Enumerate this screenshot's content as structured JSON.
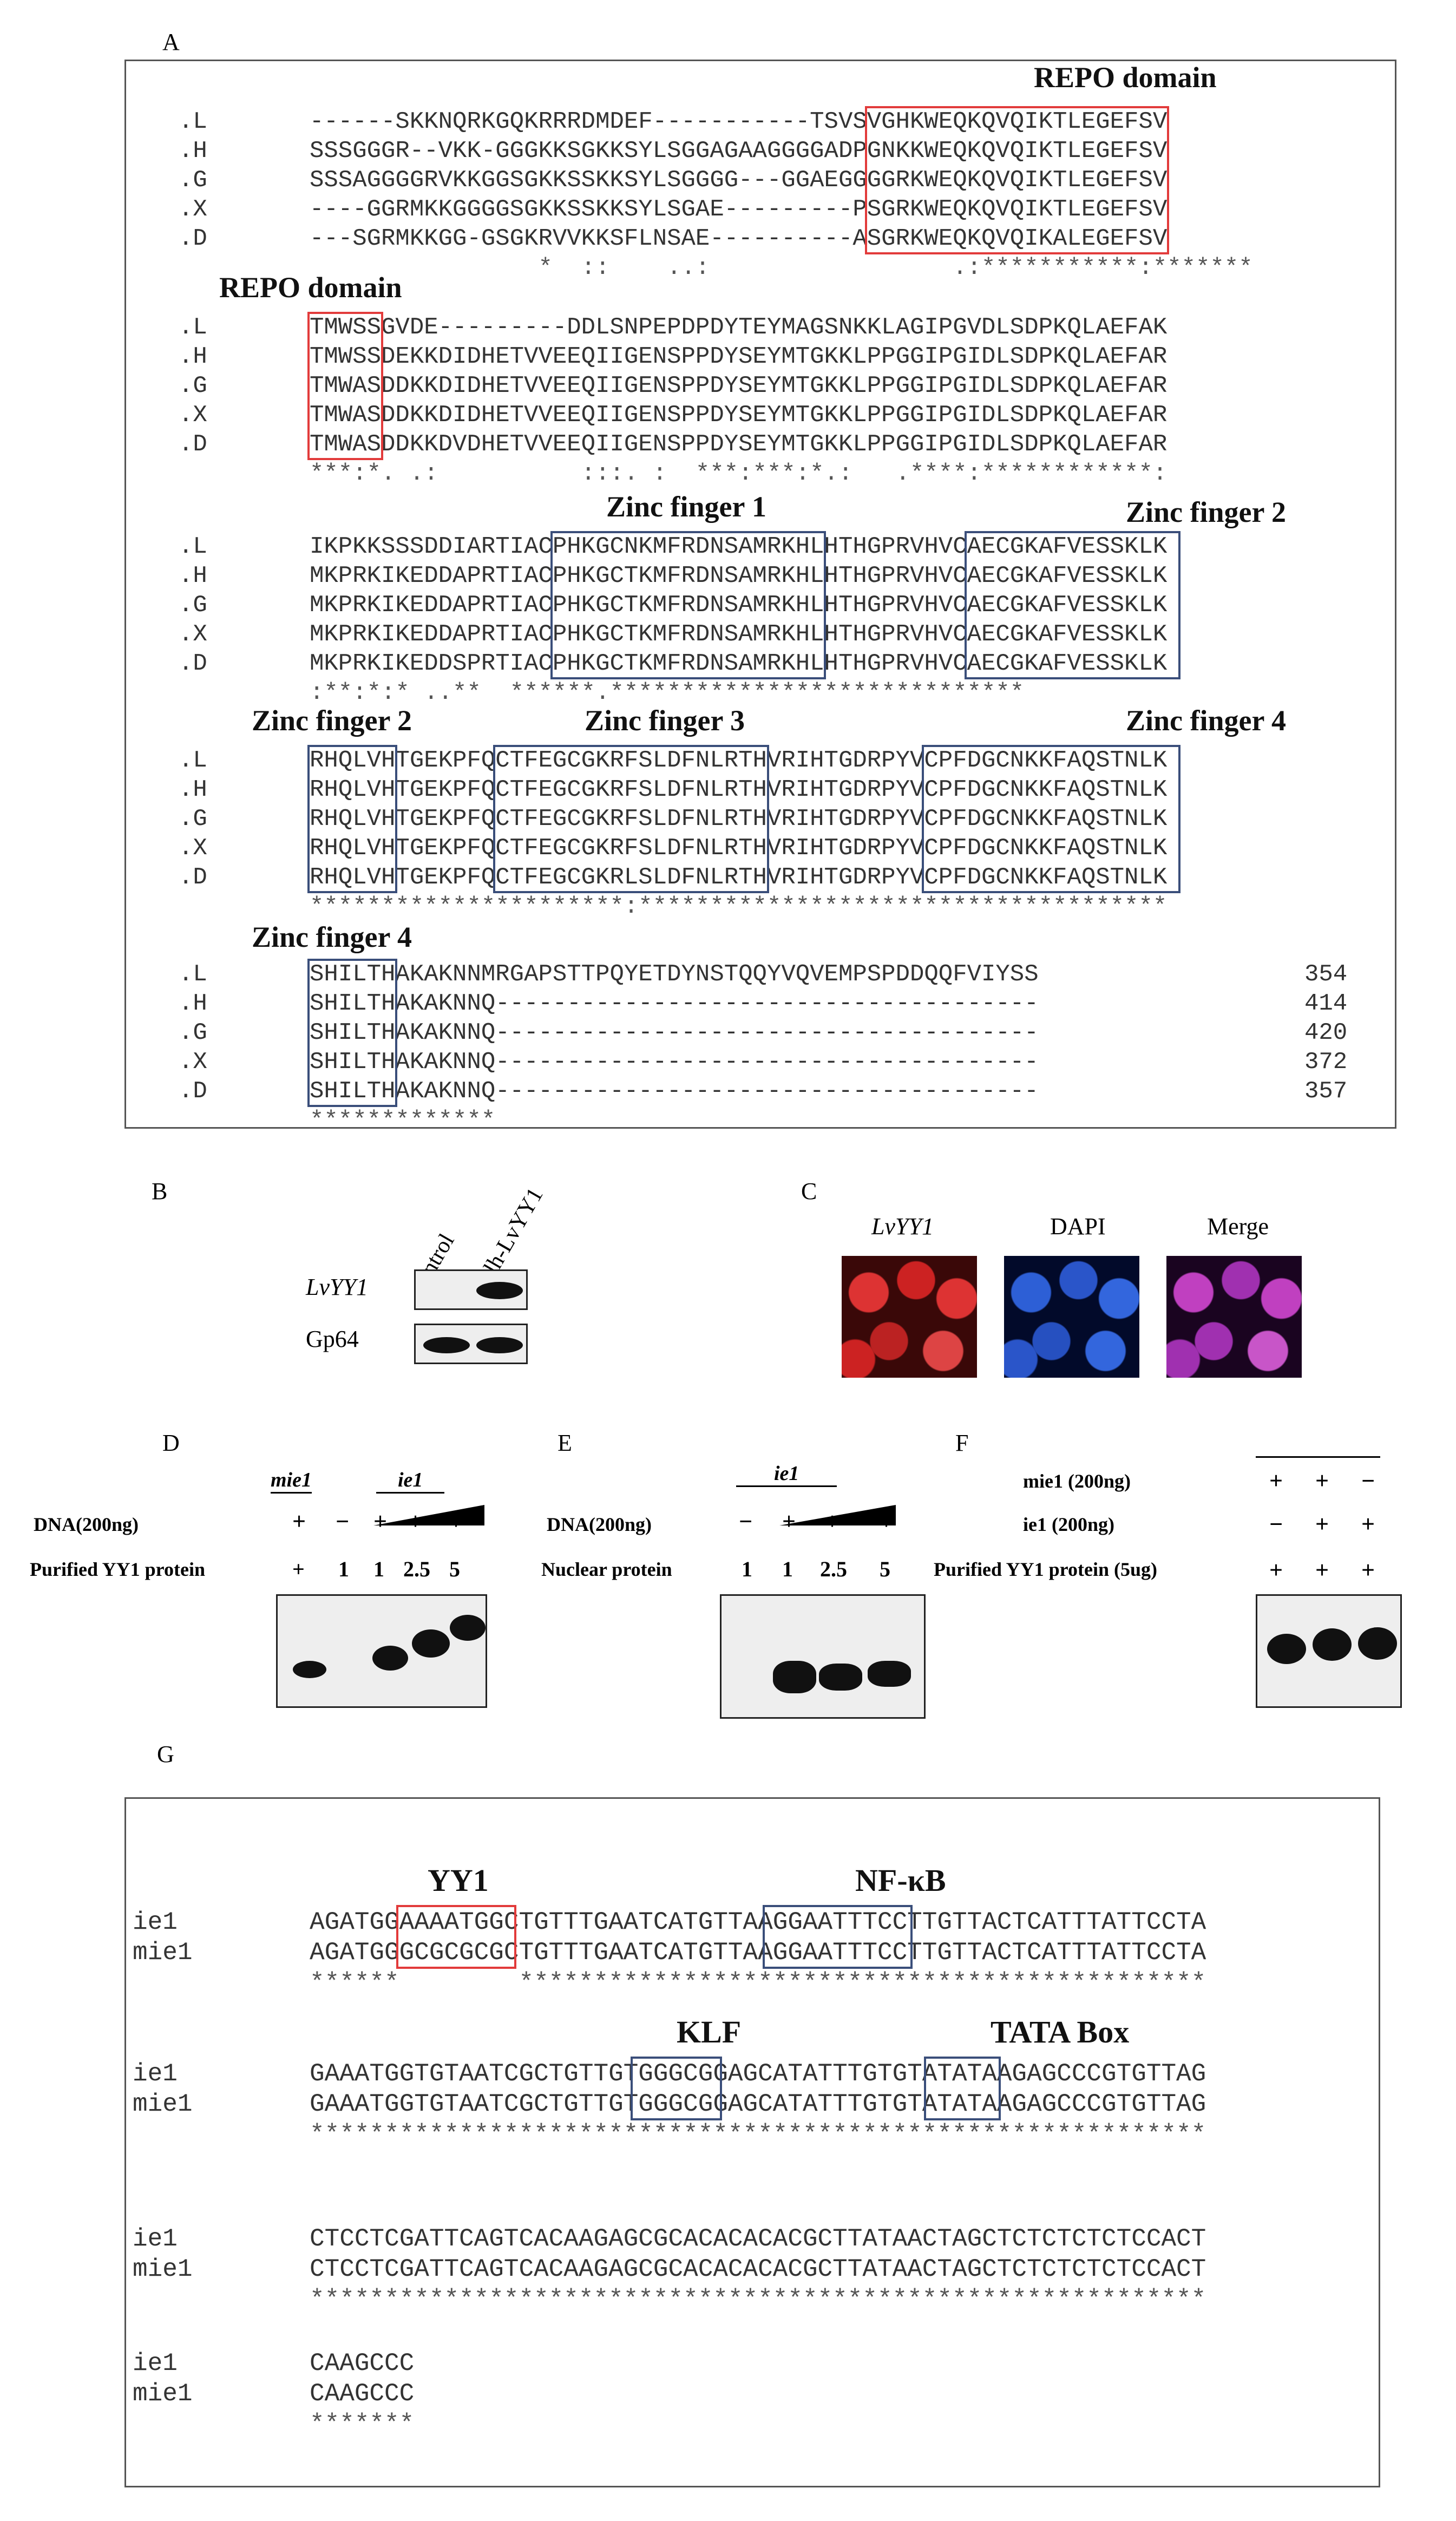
{
  "panels": {
    "A": {
      "letter": "A",
      "blocks": [
        {
          "rows": [
            {
              "id": ".L",
              "seq": "------SKKNQRKGQKRRRDMDEF-----------TSVSVGHKWEQKQVQIKTLEGEFSV"
            },
            {
              "id": ".H",
              "seq": "SSSGGGR--VKK-GGGKKSGKKSYLSGGAGAAGGGGADPGNKKWEQKQVQIKTLEGEFSV"
            },
            {
              "id": ".G",
              "seq": "SSSAGGGGRVKKGGSGKKSSKKSYLSGGGG---GGAEGGGGRKWEQKQVQIKTLEGEFSV"
            },
            {
              "id": ".X",
              "seq": "----GGRMKKGGGGSGKKSSKKSYLSGAE---------PSGRKWEQKQVQIKTLEGEFSV"
            },
            {
              "id": ".D",
              "seq": "---SGRMKKGG-GSGKRVVKKSFLNSAE----------ASGRKWEQKQVQIKALEGEFSV"
            }
          ],
          "cons": "                *  ::    ..:                 .:***********:*******"
        },
        {
          "rows": [
            {
              "id": ".L",
              "seq": "TMWSSGVDE---------DDLSNPEPDPDYTEYMAGSNKKLAGIPGVDLSDPKQLAEFAK"
            },
            {
              "id": ".H",
              "seq": "TMWSSDEKKDIDHETVVEEQIIGENSPPDYSEYMTGKKLPPGGIPGIDLSDPKQLAEFAR"
            },
            {
              "id": ".G",
              "seq": "TMWASDDKKDIDHETVVEEQIIGENSPPDYSEYMTGKKLPPGGIPGIDLSDPKQLAEFAR"
            },
            {
              "id": ".X",
              "seq": "TMWASDDKKDIDHETVVEEQIIGENSPPDYSEYMTGKKLPPGGIPGIDLSDPKQLAEFAR"
            },
            {
              "id": ".D",
              "seq": "TMWASDDKKDVDHETVVEEQIIGENSPPDYSEYMTGKKLPPGGIPGIDLSDPKQLAEFAR"
            }
          ],
          "cons": "***:*. .:          :::. :  ***:***:*.:   .****:************:"
        },
        {
          "rows": [
            {
              "id": ".L",
              "seq": "IKPKKSSSDDIARTIACPHKGCNKMFRDNSAMRKHLHTHGPRVHVCAECGKAFVESSKLK"
            },
            {
              "id": ".H",
              "seq": "MKPRKIKEDDAPRTIACPHKGCTKMFRDNSAMRKHLHTHGPRVHVCAECGKAFVESSKLK"
            },
            {
              "id": ".G",
              "seq": "MKPRKIKEDDAPRTIACPHKGCTKMFRDNSAMRKHLHTHGPRVHVCAECGKAFVESSKLK"
            },
            {
              "id": ".X",
              "seq": "MKPRKIKEDDAPRTIACPHKGCTKMFRDNSAMRKHLHTHGPRVHVCAECGKAFVESSKLK"
            },
            {
              "id": ".D",
              "seq": "MKPRKIKEDDSPRTIACPHKGCTKMFRDNSAMRKHLHTHGPRVHVCAECGKAFVESSKLK"
            }
          ],
          "cons": ":**:*:* ..**  ******.*****************************"
        },
        {
          "rows": [
            {
              "id": ".L",
              "seq": "RHQLVHTGEKPFQCTFEGCGKRFSLDFNLRTHVRIHTGDRPYVCPFDGCNKKFAQSTNLK"
            },
            {
              "id": ".H",
              "seq": "RHQLVHTGEKPFQCTFEGCGKRFSLDFNLRTHVRIHTGDRPYVCPFDGCNKKFAQSTNLK"
            },
            {
              "id": ".G",
              "seq": "RHQLVHTGEKPFQCTFEGCGKRFSLDFNLRTHVRIHTGDRPYVCPFDGCNKKFAQSTNLK"
            },
            {
              "id": ".X",
              "seq": "RHQLVHTGEKPFQCTFEGCGKRFSLDFNLRTHVRIHTGDRPYVCPFDGCNKKFAQSTNLK"
            },
            {
              "id": ".D",
              "seq": "RHQLVHTGEKPFQCTFEGCGKRLSLDFNLRTHVRIHTGDRPYVCPFDGCNKKFAQSTNLK"
            }
          ],
          "cons": "**********************:*************************************"
        },
        {
          "rows": [
            {
              "id": ".L",
              "seq": "SHILTHAKAKNNMRGAPSTTPQYETDYNSTQQYVQVEMPSPDDQQFVIYSS",
              "len": "354"
            },
            {
              "id": ".H",
              "seq": "SHILTHAKAKNNQ--------------------------------------",
              "len": "414"
            },
            {
              "id": ".G",
              "seq": "SHILTHAKAKNNQ--------------------------------------",
              "len": "420"
            },
            {
              "id": ".X",
              "seq": "SHILTHAKAKNNQ--------------------------------------",
              "len": "372"
            },
            {
              "id": ".D",
              "seq": "SHILTHAKAKNNQ--------------------------------------",
              "len": "357"
            }
          ],
          "cons": "*************"
        }
      ],
      "labels": {
        "repo1": "REPO domain",
        "repo2": "REPO domain",
        "zf1": "Zinc finger 1",
        "zf2a": "Zinc finger 2",
        "zf2b": "Zinc finger 2",
        "zf3": "Zinc finger 3",
        "zf4a": "Zinc finger 4",
        "zf4b": "Zinc finger 4"
      }
    },
    "B": {
      "letter": "B",
      "lanes": [
        "control",
        "polh-LvYY1"
      ],
      "rows": [
        "LvYY1",
        "Gp64"
      ]
    },
    "C": {
      "letter": "C",
      "images": [
        "LvYY1",
        "DAPI",
        "Merge"
      ]
    },
    "D": {
      "letter": "D",
      "mutant_label": "mie1",
      "wt_label": "ie1",
      "row1_label": "DNA(200ng)",
      "row1_values": [
        "+",
        "−",
        "+",
        "+",
        "+"
      ],
      "row2_label": "Purified  YY1 protein",
      "row2_values": [
        "+",
        "1",
        "1",
        "2.5",
        "5"
      ]
    },
    "E": {
      "letter": "E",
      "wt_label": "ie1",
      "row1_label": "DNA(200ng)",
      "row1_values": [
        "−",
        "+",
        "+",
        "+"
      ],
      "row2_label": "Nuclear protein",
      "row2_values": [
        "1",
        "1",
        "2.5",
        "5"
      ]
    },
    "F": {
      "letter": "F",
      "row1_label": "mie1 (200ng)",
      "row1_values": [
        "+",
        "+",
        "−"
      ],
      "row2_label": "ie1    (200ng)",
      "row2_values": [
        "−",
        "+",
        "+"
      ],
      "row3_label": "Purified  YY1 protein (5ug)",
      "row3_values": [
        "+",
        "+",
        "+"
      ]
    },
    "G": {
      "letter": "G",
      "blocks": [
        {
          "rows": [
            {
              "id": "ie1",
              "seq": "AGATGGAAAATGGCTGTTTGAATCATGTTAAGGAATTTCCTTGTTACTCATTTATTCCTA"
            },
            {
              "id": "mie1",
              "seq": "AGATGGGCGCGCGCTGTTTGAATCATGTTAAGGAATTTCCTTGTTACTCATTTATTCCTA"
            }
          ],
          "cons": "******        **********************************************"
        },
        {
          "rows": [
            {
              "id": "ie1",
              "seq": "GAAATGGTGTAATCGCTGTTGTGGGCGGAGCATATTTGTGTATATAAGAGCCCGTGTTAG"
            },
            {
              "id": "mie1",
              "seq": "GAAATGGTGTAATCGCTGTTGTGGGCGGAGCATATTTGTGTATATAAGAGCCCGTGTTAG"
            }
          ],
          "cons": "************************************************************"
        },
        {
          "rows": [
            {
              "id": "ie1",
              "seq": "CTCCTCGATTCAGTCACAAGAGCGCACACACACGCTTATAACTAGCTCTCTCTCTCCACT"
            },
            {
              "id": "mie1",
              "seq": "CTCCTCGATTCAGTCACAAGAGCGCACACACACGCTTATAACTAGCTCTCTCTCTCCACT"
            }
          ],
          "cons": "************************************************************"
        },
        {
          "rows": [
            {
              "id": "ie1",
              "seq": "CAAGCCC"
            },
            {
              "id": "mie1",
              "seq": "CAAGCCC"
            }
          ],
          "cons": "*******"
        }
      ],
      "labels": {
        "yy1": "YY1",
        "nfkb": "NF-κB",
        "klf": "KLF",
        "tata": "TATA Box"
      }
    }
  },
  "colors": {
    "repo_box": "#e23b3b",
    "zinc_box": "#3a4e7a",
    "yy1_box": "#e23b3b",
    "motif_box": "#3a4e7a"
  }
}
